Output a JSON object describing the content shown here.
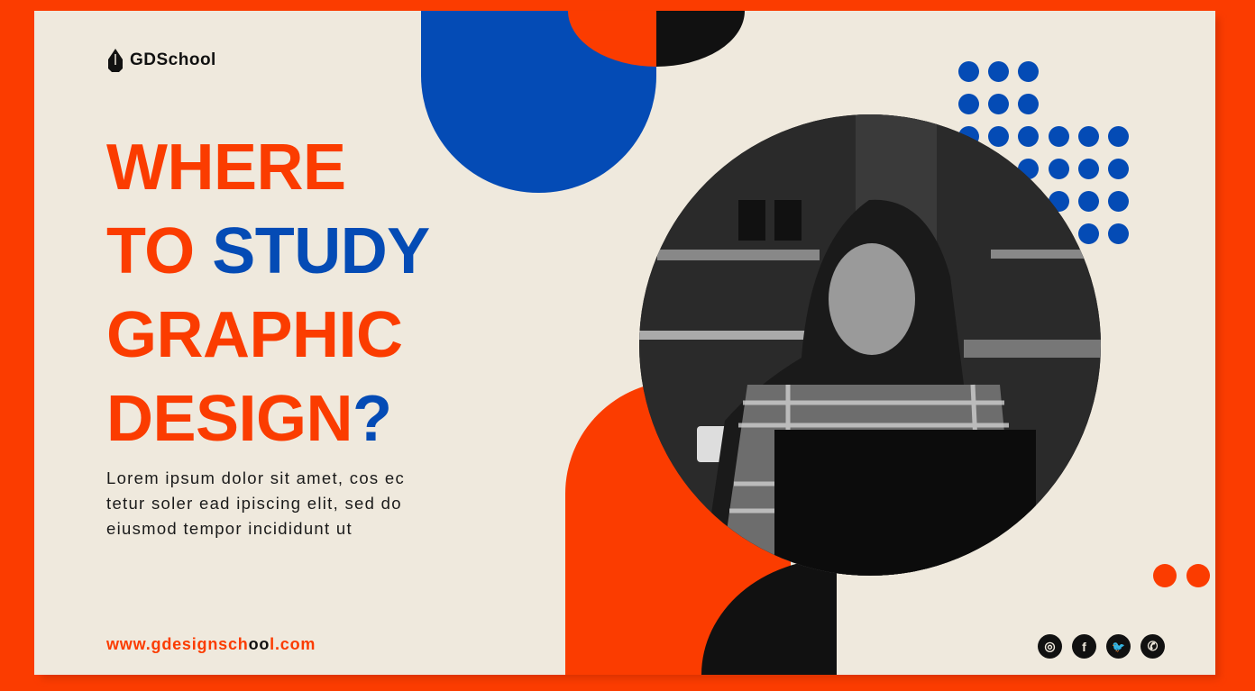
{
  "brand": {
    "name": "GDSchool",
    "logo_icon": "pen-nib-icon"
  },
  "headline": {
    "line1": "WHERE",
    "line2_a": "TO ",
    "line2_b": "STUDY",
    "line3": "GRAPHIC",
    "line4_a": "DESIGN",
    "line4_b": "?"
  },
  "body": {
    "lines": [
      "Lorem ipsum dolor sit amet, cos ec",
      "tetur soler ead ipiscing elit, sed do",
      "eiusmod tempor incididunt ut"
    ]
  },
  "url": {
    "part1": "www.gdesignsch",
    "part2": "oo",
    "part3": "l.com"
  },
  "social": [
    {
      "icon": "instagram-icon",
      "glyph": "◎"
    },
    {
      "icon": "facebook-icon",
      "glyph": "f"
    },
    {
      "icon": "twitter-icon",
      "glyph": "🐦"
    },
    {
      "icon": "whatsapp-icon",
      "glyph": "✆"
    }
  ],
  "colors": {
    "accent_orange": "#fb3c00",
    "accent_blue": "#044bb5",
    "background": "#efe9dd",
    "dark": "#111111"
  }
}
